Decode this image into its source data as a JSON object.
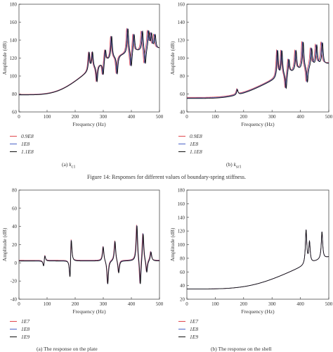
{
  "figure_title": "Figure 14: Responses for different values of boundary-spring stiffness.",
  "chart_data": [
    {
      "type": "line",
      "caption_prefix": "(a)",
      "caption_symbol": "k",
      "caption_subscript": "c1",
      "xlabel": "Frequency (Hz)",
      "ylabel": "Amplitude (dB)",
      "xlim": [
        0,
        500
      ],
      "ylim": [
        60,
        180
      ],
      "xticks": [
        "0",
        "100",
        "200",
        "300",
        "400",
        "500"
      ],
      "yticks": [
        "60",
        "80",
        "100",
        "120",
        "140",
        "160",
        "180"
      ],
      "base": {
        "a": 79,
        "b": 55,
        "f0": 255
      },
      "resonances": [
        [
          250,
          1,
          20
        ],
        [
          262,
          1,
          18
        ],
        [
          278,
          1,
          -18
        ],
        [
          300,
          1,
          -15
        ],
        [
          308,
          1,
          14
        ],
        [
          330,
          1,
          25
        ],
        [
          350,
          1,
          -20
        ],
        [
          388,
          1,
          28
        ],
        [
          400,
          1,
          -18
        ],
        [
          410,
          1,
          20
        ],
        [
          440,
          1,
          22
        ],
        [
          450,
          1,
          -18
        ],
        [
          462,
          1,
          20
        ],
        [
          472,
          1,
          16
        ],
        [
          485,
          1,
          15
        ]
      ],
      "series": [
        {
          "name": "0.9E8",
          "color": "#e0474c",
          "shift": -0.012,
          "offset": 0.6
        },
        {
          "name": "1E8",
          "color": "#4a63c8",
          "shift": -0.006,
          "offset": 0.3
        },
        {
          "name": "1.1E8",
          "color": "#111111",
          "shift": 0,
          "offset": 0
        }
      ]
    },
    {
      "type": "line",
      "caption_prefix": "(b)",
      "caption_symbol": "k",
      "caption_subscript": "sr1",
      "xlabel": "Frequency (Hz)",
      "ylabel": "Amplitude (dB)",
      "xlim": [
        0,
        500
      ],
      "ylim": [
        40,
        160
      ],
      "xticks": [
        "0",
        "100",
        "200",
        "300",
        "400",
        "500"
      ],
      "yticks": [
        "40",
        "60",
        "80",
        "100",
        "120",
        "140",
        "160"
      ],
      "base": {
        "a": 55,
        "b": 45,
        "f0": 320
      },
      "resonances": [
        [
          178,
          1,
          6
        ],
        [
          320,
          1,
          30
        ],
        [
          335,
          1,
          28
        ],
        [
          350,
          1,
          -18
        ],
        [
          360,
          1,
          16
        ],
        [
          385,
          1,
          22
        ],
        [
          410,
          1,
          30
        ],
        [
          425,
          1,
          -18
        ],
        [
          440,
          1,
          20
        ],
        [
          458,
          1,
          22
        ],
        [
          478,
          1,
          24
        ]
      ],
      "series": [
        {
          "name": "0.9E8",
          "color": "#e0474c",
          "shift": -0.012,
          "offset": 1.2
        },
        {
          "name": "1E8",
          "color": "#4a63c8",
          "shift": -0.006,
          "offset": 0.6
        },
        {
          "name": "1.1E8",
          "color": "#111111",
          "shift": 0,
          "offset": 0
        }
      ]
    },
    {
      "type": "line",
      "caption_prefix": "(a)",
      "caption_symbol": "",
      "caption_subscript": "",
      "caption_text": "The response on the plate",
      "xlabel": "Frequency (Hz)",
      "ylabel": "Amplitude (dB)",
      "xlim": [
        0,
        500
      ],
      "ylim": [
        -40,
        80
      ],
      "xticks": [
        "0",
        "100",
        "200",
        "300",
        "400",
        "500"
      ],
      "yticks": [
        "-40",
        "-20",
        "0",
        "20",
        "40",
        "60",
        "80"
      ],
      "base": {
        "a": 2,
        "b": 0,
        "f0": 0
      },
      "resonances": [
        [
          88,
          1,
          -8
        ],
        [
          92,
          1,
          8
        ],
        [
          182,
          1,
          -28
        ],
        [
          186,
          1,
          32
        ],
        [
          300,
          1,
          16
        ],
        [
          316,
          1,
          -26
        ],
        [
          342,
          1,
          22
        ],
        [
          355,
          1,
          -14
        ],
        [
          420,
          1,
          40
        ],
        [
          432,
          1,
          -30
        ],
        [
          442,
          1,
          32
        ],
        [
          455,
          1,
          -14
        ],
        [
          470,
          1,
          10
        ]
      ],
      "series": [
        {
          "name": "1E7",
          "color": "#e0474c",
          "shift": -0.004,
          "offset": 0.8
        },
        {
          "name": "1E8",
          "color": "#4a63c8",
          "shift": -0.002,
          "offset": 0.4
        },
        {
          "name": "1E9",
          "color": "#111111",
          "shift": 0,
          "offset": 0
        }
      ]
    },
    {
      "type": "line",
      "caption_prefix": "(b)",
      "caption_symbol": "",
      "caption_subscript": "",
      "caption_text": "The response on the shell",
      "xlabel": "Frequency (Hz)",
      "ylabel": "Amplitude (dB)",
      "xlim": [
        0,
        500
      ],
      "ylim": [
        20,
        180
      ],
      "xticks": [
        "0",
        "100",
        "200",
        "300",
        "400",
        "500"
      ],
      "yticks": [
        "20",
        "40",
        "60",
        "80",
        "100",
        "120",
        "140",
        "160",
        "180"
      ],
      "base": {
        "a": 35,
        "b": 70,
        "f0": 420
      },
      "resonances": [
        [
          420,
          1,
          50
        ],
        [
          432,
          1,
          30
        ],
        [
          476,
          1,
          40
        ]
      ],
      "series": [
        {
          "name": "1E7",
          "color": "#e0474c",
          "shift": 0,
          "offset": 0
        },
        {
          "name": "1E8",
          "color": "#4a63c8",
          "shift": 0,
          "offset": 0
        },
        {
          "name": "1E9",
          "color": "#111111",
          "shift": 0,
          "offset": 0
        }
      ]
    }
  ]
}
